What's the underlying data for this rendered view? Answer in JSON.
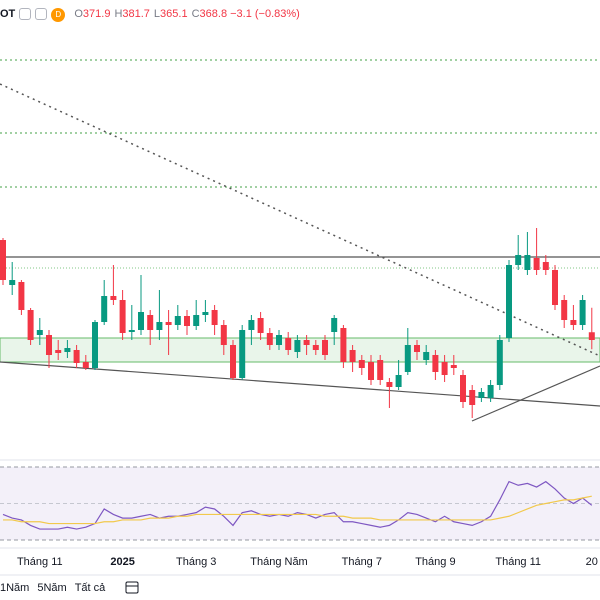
{
  "header": {
    "symbol": "OT",
    "badge": "D",
    "ohlc": [
      {
        "label": "O",
        "value": "371.9"
      },
      {
        "label": "H",
        "value": "381.7"
      },
      {
        "label": "L",
        "value": "365.1"
      },
      {
        "label": "C",
        "value": "368.8"
      }
    ],
    "change": "−3.1 (−0.83%)"
  },
  "toolbar": {
    "buttons": [
      "1Năm",
      "5Năm",
      "Tất cả"
    ]
  },
  "chart_data": [
    {
      "type": "candlestick",
      "up_color": "#089981",
      "down_color": "#f23645",
      "ylim": [
        320.8,
        504.8
      ],
      "categories": [
        null,
        null,
        null,
        null,
        "Tháng 11",
        null,
        null,
        null,
        null,
        null,
        null,
        null,
        null,
        "2025",
        null,
        null,
        null,
        null,
        null,
        null,
        null,
        "Tháng 3",
        null,
        null,
        null,
        null,
        null,
        null,
        null,
        null,
        "Tháng Năm",
        null,
        null,
        null,
        null,
        null,
        null,
        null,
        null,
        "Tháng 7",
        null,
        null,
        null,
        null,
        null,
        null,
        null,
        "Tháng 9",
        null,
        null,
        null,
        null,
        null,
        null,
        null,
        null,
        "Tháng 11",
        null,
        null,
        null,
        null,
        null,
        null,
        null,
        "20"
      ],
      "open": [
        408.8,
        390.8,
        392.0,
        380.8,
        370.8,
        370.8,
        364.8,
        364.0,
        364.8,
        360.0,
        357.6,
        376.0,
        386.4,
        384.8,
        372.0,
        372.8,
        378.8,
        372.8,
        376.0,
        374.8,
        378.4,
        374.4,
        378.8,
        380.8,
        374.8,
        366.8,
        353.6,
        372.8,
        377.6,
        371.6,
        366.8,
        369.6,
        364.0,
        368.8,
        366.8,
        368.8,
        372.0,
        373.6,
        364.8,
        360.8,
        360.0,
        360.8,
        352.0,
        350.0,
        356.0,
        366.8,
        360.8,
        362.8,
        360.0,
        358.8,
        354.8,
        348.8,
        345.6,
        345.6,
        350.8,
        369.6,
        398.8,
        396.8,
        401.6,
        400.0,
        396.8,
        384.8,
        376.8,
        374.8,
        371.9
      ],
      "high": [
        409.6,
        400.0,
        392.8,
        381.6,
        377.6,
        372.8,
        368.8,
        368.8,
        366.8,
        362.8,
        376.8,
        392.8,
        398.8,
        388.8,
        382.8,
        394.8,
        380.8,
        388.8,
        380.8,
        382.8,
        380.8,
        384.8,
        384.8,
        382.8,
        376.8,
        368.8,
        374.8,
        378.8,
        380.0,
        373.6,
        372.8,
        372.0,
        370.8,
        370.8,
        368.8,
        370.8,
        378.8,
        374.8,
        366.8,
        362.8,
        362.8,
        362.8,
        353.6,
        360.8,
        373.6,
        368.8,
        366.8,
        364.8,
        362.8,
        362.8,
        356.8,
        350.8,
        349.6,
        352.8,
        370.8,
        400.8,
        410.8,
        412.0,
        413.6,
        402.8,
        398.8,
        386.8,
        382.8,
        386.8,
        381.7
      ],
      "low": [
        390.8,
        386.8,
        378.8,
        366.8,
        366.8,
        357.6,
        360.8,
        361.6,
        357.6,
        356.8,
        356.8,
        374.8,
        382.8,
        368.8,
        368.8,
        370.8,
        366.8,
        368.8,
        362.8,
        372.8,
        370.8,
        372.8,
        376.0,
        370.8,
        362.8,
        352.8,
        352.8,
        366.8,
        368.8,
        364.8,
        364.8,
        362.8,
        361.6,
        362.8,
        362.8,
        360.8,
        366.8,
        357.6,
        356.0,
        354.8,
        350.8,
        350.8,
        341.6,
        348.8,
        354.8,
        360.8,
        358.8,
        352.8,
        352.0,
        354.8,
        341.6,
        337.6,
        344.0,
        344.0,
        348.8,
        368.0,
        396.8,
        394.8,
        394.8,
        394.8,
        380.8,
        373.6,
        372.8,
        372.8,
        365.1
      ],
      "close": [
        392.8,
        392.8,
        380.8,
        368.8,
        372.8,
        362.8,
        363.6,
        365.6,
        359.6,
        357.6,
        376.0,
        386.4,
        384.8,
        371.6,
        372.8,
        380.0,
        372.8,
        376.0,
        374.8,
        378.4,
        374.4,
        378.8,
        380.0,
        374.8,
        366.8,
        353.6,
        372.8,
        376.8,
        371.6,
        366.8,
        370.8,
        364.8,
        368.8,
        366.8,
        364.8,
        362.8,
        377.6,
        360.0,
        360.0,
        357.6,
        352.8,
        352.8,
        350.0,
        354.8,
        366.8,
        364.0,
        364.0,
        356.0,
        354.8,
        357.6,
        344.0,
        342.8,
        348.0,
        350.8,
        368.8,
        398.8,
        402.8,
        402.8,
        396.8,
        396.8,
        382.8,
        376.8,
        374.8,
        384.8,
        368.8
      ]
    },
    {
      "type": "line",
      "ylim": [
        30,
        70
      ],
      "series": [
        {
          "color": "#7e57c2",
          "values": [
            44,
            42,
            41,
            38,
            36,
            36,
            36,
            37,
            36,
            37,
            39,
            47,
            44,
            42,
            42,
            43,
            44,
            42,
            43,
            43,
            44,
            45,
            48,
            47,
            43,
            38,
            45,
            46,
            44,
            43,
            44,
            43,
            45,
            44,
            42,
            44,
            45,
            40,
            40,
            39,
            38,
            37,
            38,
            41,
            45,
            44,
            42,
            40,
            43,
            40,
            39,
            38,
            40,
            43,
            52,
            62,
            60,
            61,
            59,
            62,
            58,
            53,
            50,
            53,
            49
          ]
        },
        {
          "color": "#f2c94c",
          "values": [
            41,
            41,
            40,
            40,
            40,
            39,
            39,
            39,
            39,
            39,
            39,
            40,
            40,
            41,
            41,
            41,
            42,
            42,
            42,
            43,
            43,
            44,
            44,
            44,
            44,
            44,
            44,
            44,
            44,
            44,
            44,
            44,
            44,
            44,
            44,
            43,
            43,
            43,
            42,
            42,
            42,
            41,
            41,
            41,
            41,
            41,
            41,
            41,
            41,
            41,
            41,
            41,
            41,
            41,
            42,
            43,
            45,
            47,
            49,
            50,
            51,
            52,
            52,
            53,
            54
          ]
        }
      ]
    }
  ]
}
